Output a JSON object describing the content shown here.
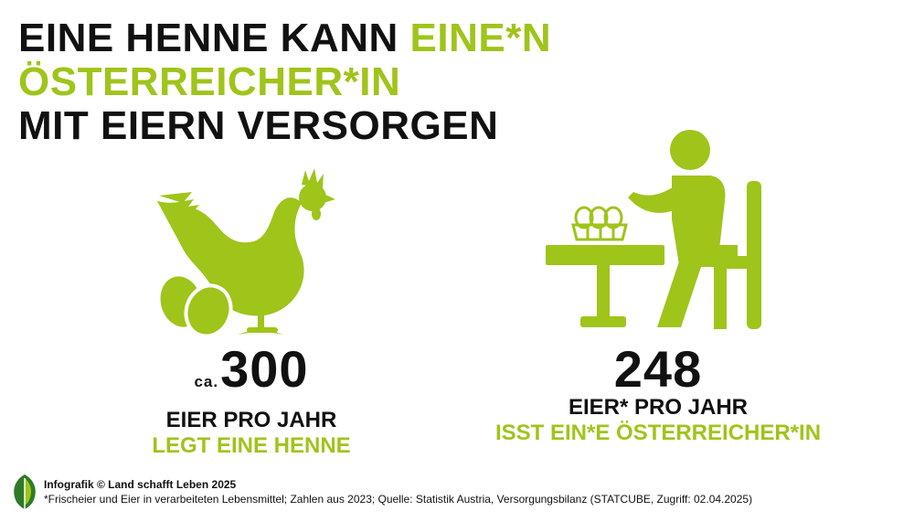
{
  "title": {
    "line1_black": "EINE HENNE KANN ",
    "line1_green": "EINE*N ÖSTERREICHER*IN",
    "line2": "MIT EIERN VERSORGEN"
  },
  "left_stat": {
    "prefix": "ca.",
    "number": "300",
    "line1": "EIER PRO JAHR",
    "line2": "LEGT EINE HENNE"
  },
  "right_stat": {
    "number": "248",
    "line1": "EIER* PRO JAHR",
    "line2": "ISST EIN*E ÖSTERREICHER*IN"
  },
  "footer": {
    "credit": "Infografik © Land schafft Leben 2025",
    "note": "*Frischeier und Eier in verarbeiteten Lebensmittel; Zahlen aus 2023; Quelle: Statistik Austria, Versorgungsbilanz (STATCUBE, Zugriff: 02.04.2025)"
  },
  "colors": {
    "accent": "#9fc41a",
    "text": "#111111"
  },
  "icons": [
    "hen-with-eggs-icon",
    "person-eating-eggs-icon",
    "leaf-logo-icon"
  ]
}
